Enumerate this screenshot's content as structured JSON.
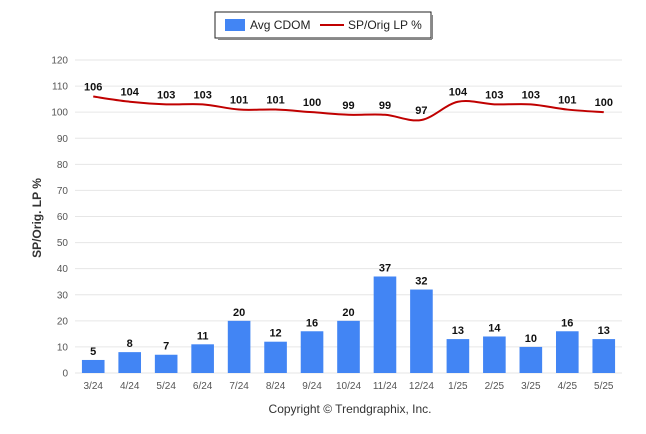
{
  "chart_data": {
    "type": "bar",
    "categories": [
      "3/24",
      "4/24",
      "5/24",
      "6/24",
      "7/24",
      "8/24",
      "9/24",
      "10/24",
      "11/24",
      "12/24",
      "1/25",
      "2/25",
      "3/25",
      "4/25",
      "5/25"
    ],
    "series": [
      {
        "name": "Avg CDOM",
        "type": "bar",
        "color": "#4285f4",
        "values": [
          5,
          8,
          7,
          11,
          20,
          12,
          16,
          20,
          37,
          32,
          13,
          14,
          10,
          16,
          13
        ]
      },
      {
        "name": "SP/Orig LP %",
        "type": "line",
        "color": "#c00000",
        "values": [
          106,
          104,
          103,
          103,
          101,
          101,
          100,
          99,
          99,
          97,
          104,
          103,
          103,
          101,
          100
        ]
      }
    ],
    "ylabel": "SP/Orig. LP %",
    "ylim": [
      0,
      120
    ],
    "yticks": [
      0,
      10,
      20,
      30,
      40,
      50,
      60,
      70,
      80,
      90,
      100,
      110,
      120
    ],
    "grid": true,
    "legend": "top-center"
  },
  "footer": {
    "copyright": "Copyright © Trendgraphix, Inc."
  }
}
